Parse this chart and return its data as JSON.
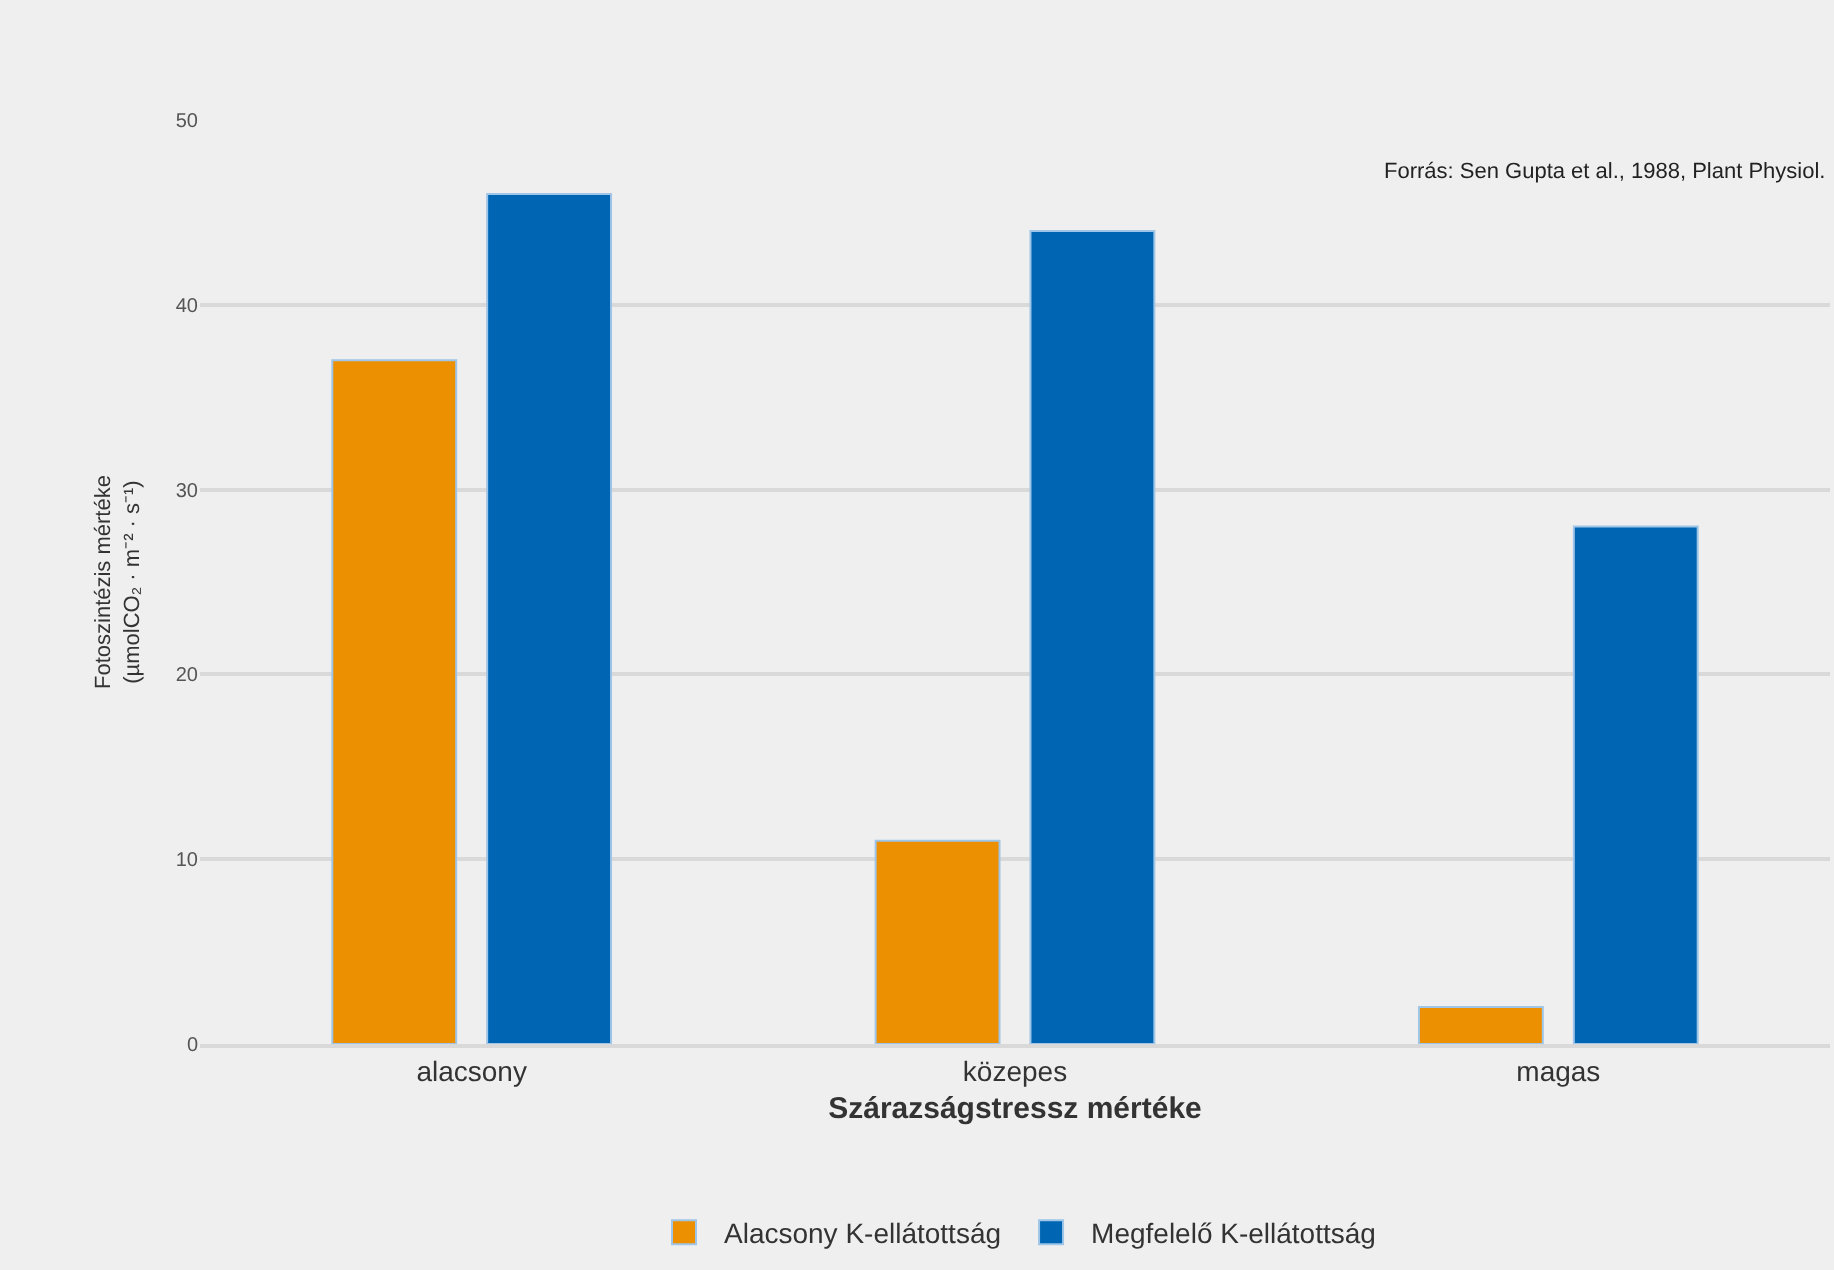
{
  "chart_data": {
    "type": "bar",
    "xlabel": "Szárazságstressz mértéke",
    "ylabel": "Fotoszintézis mértéke\n(µmolCO₂ · m⁻² · s⁻¹)",
    "categories": [
      "alacsony",
      "közepes",
      "magas"
    ],
    "series": [
      {
        "name": "Alacsony K-ellátottság",
        "color": "#ec8f00",
        "values": [
          37,
          11,
          2
        ]
      },
      {
        "name": "Megfelelő K-ellátottság",
        "color": "#0066b3",
        "values": [
          46,
          44,
          28
        ]
      }
    ],
    "ylim": [
      0,
      50
    ],
    "yticks": [
      0,
      10,
      20,
      30,
      40,
      50
    ],
    "grid": "y",
    "legend": "bottom",
    "annotations": [
      "Forrás: Sen Gupta et al., 1988, Plant Physiol."
    ]
  }
}
